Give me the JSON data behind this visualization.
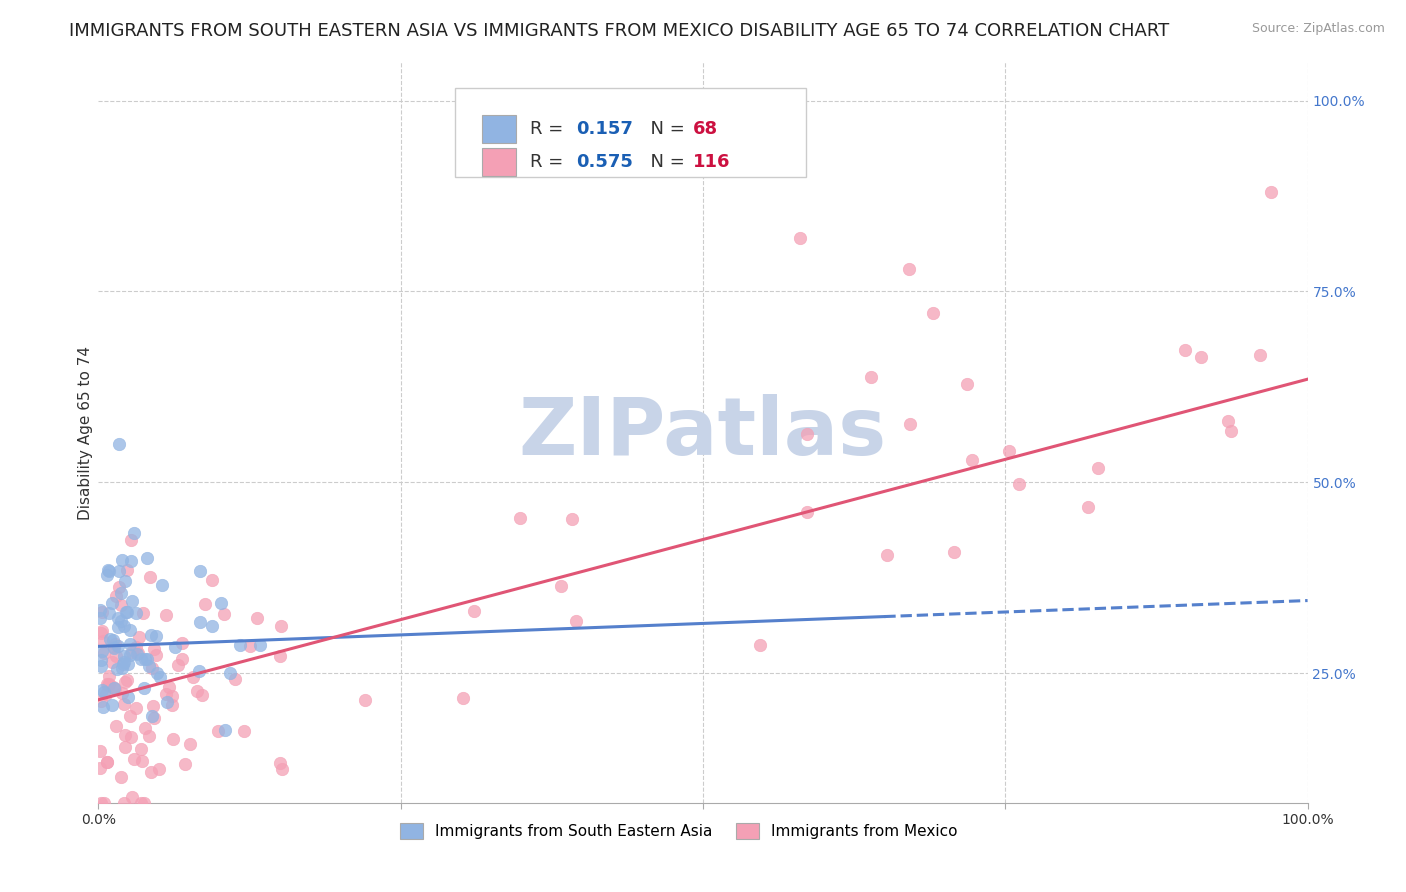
{
  "title": "IMMIGRANTS FROM SOUTH EASTERN ASIA VS IMMIGRANTS FROM MEXICO DISABILITY AGE 65 TO 74 CORRELATION CHART",
  "source": "Source: ZipAtlas.com",
  "xlabel": "",
  "ylabel": "Disability Age 65 to 74",
  "watermark": "ZIPatlas",
  "series": [
    {
      "name": "Immigrants from South Eastern Asia",
      "color": "#91B4E2",
      "R": 0.157,
      "N": 68,
      "trend_x": [
        0.0,
        1.0
      ],
      "trend_y_start": 0.285,
      "trend_y_end": 0.345,
      "trend_solid_end": 0.65,
      "trend_color": "#5580CC"
    },
    {
      "name": "Immigrants from Mexico",
      "color": "#F4A0B5",
      "R": 0.575,
      "N": 116,
      "trend_x": [
        0.0,
        1.0
      ],
      "trend_y_start": 0.215,
      "trend_y_end": 0.635,
      "trend_solid_end": 1.0,
      "trend_color": "#E05575"
    }
  ],
  "xlim": [
    0.0,
    1.0
  ],
  "ylim": [
    0.08,
    1.05
  ],
  "ytick_positions": [
    0.25,
    0.5,
    0.75,
    1.0
  ],
  "ytick_labels": [
    "25.0%",
    "50.0%",
    "75.0%",
    "100.0%"
  ],
  "xtick_positions": [
    0.0,
    0.25,
    0.5,
    0.75,
    1.0
  ],
  "xtick_labels": [
    "0.0%",
    "",
    "",
    "",
    "100.0%"
  ],
  "legend_R_color": "#1a5fb4",
  "legend_N_color": "#cc1040",
  "bg_color": "#ffffff",
  "grid_color": "#cccccc",
  "watermark_color": "#c8d4e8",
  "title_fontsize": 13,
  "axis_label_fontsize": 11,
  "tick_fontsize": 10,
  "legend_fontsize": 13,
  "marker_size": 80
}
